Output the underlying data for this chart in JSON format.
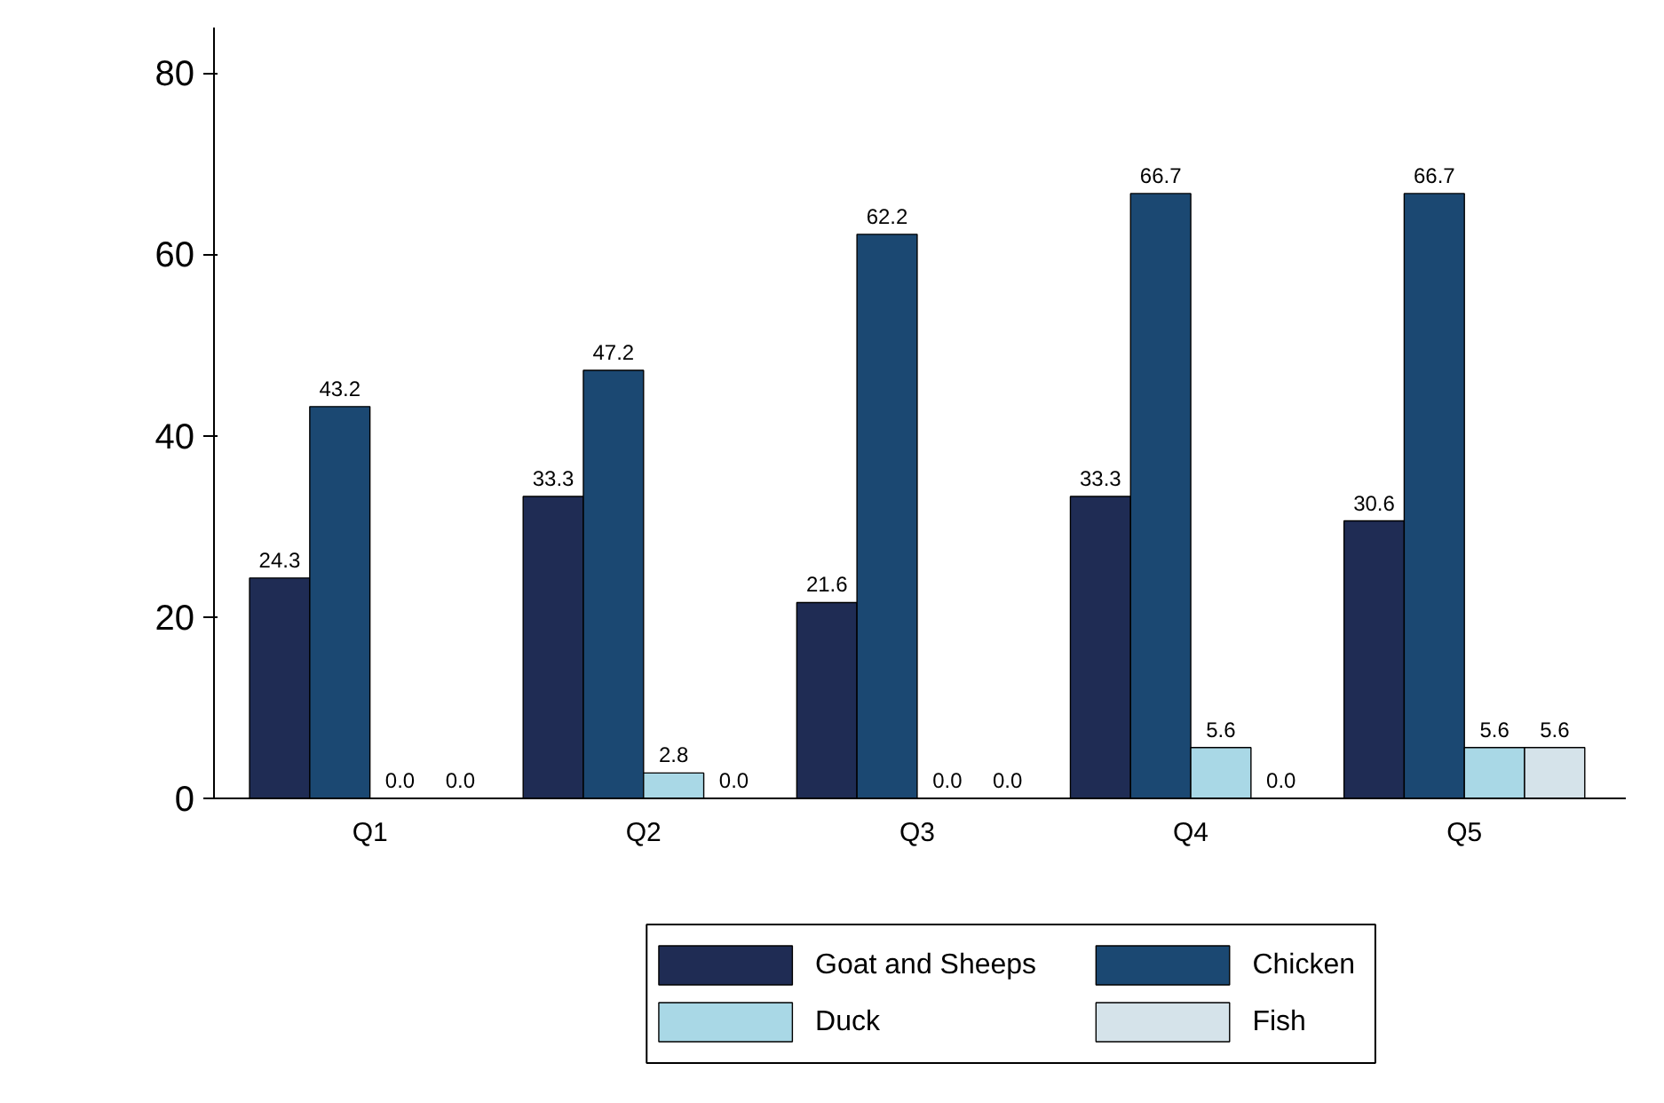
{
  "chart_data": {
    "type": "bar",
    "categories": [
      "Q1",
      "Q2",
      "Q3",
      "Q4",
      "Q5"
    ],
    "series": [
      {
        "name": "Goat and Sheeps",
        "color": "#1f2c54",
        "values": [
          24.3,
          33.3,
          21.6,
          33.3,
          30.6
        ],
        "value_labels": [
          "24.3",
          "33.3",
          "21.6",
          "33.3",
          "30.6"
        ]
      },
      {
        "name": "Chicken",
        "color": "#1b4872",
        "values": [
          43.2,
          47.2,
          62.2,
          66.7,
          66.7
        ],
        "value_labels": [
          "43.2",
          "47.2",
          "62.2",
          "66.7",
          "66.7"
        ]
      },
      {
        "name": "Duck",
        "color": "#a9d8e6",
        "values": [
          0,
          2.8,
          0,
          5.6,
          5.6
        ],
        "value_labels": [
          "0.0",
          "2.8",
          "0.0",
          "5.6",
          "5.6"
        ]
      },
      {
        "name": "Fish",
        "color": "#d5e3ea",
        "values": [
          0,
          0,
          0,
          0,
          5.6
        ],
        "value_labels": [
          "0.0",
          "0.0",
          "0.0",
          "0.0",
          "5.6"
        ]
      }
    ],
    "ylim": [
      0,
      85
    ],
    "yticks": [
      0,
      20,
      40,
      60,
      80
    ],
    "legend": "bottom",
    "grid": false
  }
}
